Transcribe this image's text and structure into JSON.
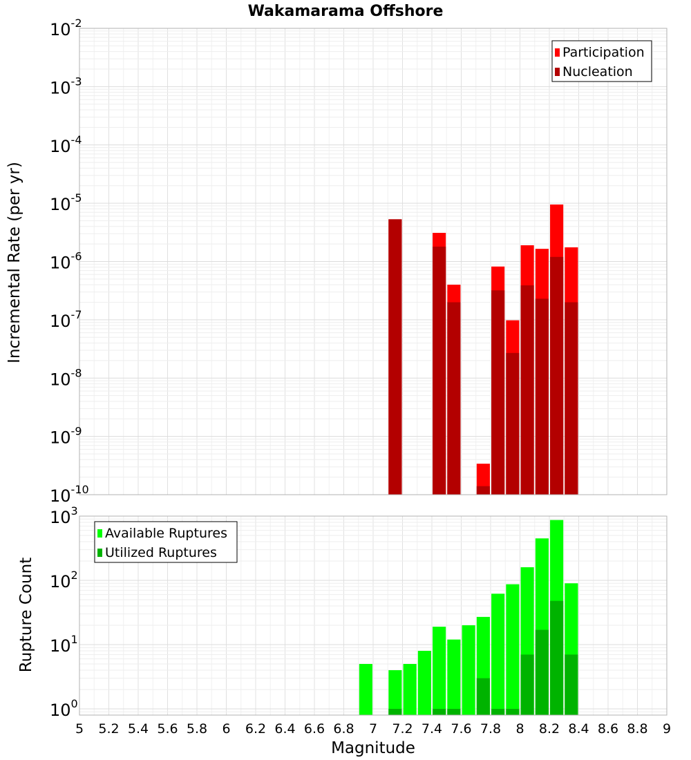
{
  "chart_data": [
    {
      "type": "bar",
      "title": "Wakamarama Offshore",
      "ylabel": "Incremental Rate (per yr)",
      "xlabel": "",
      "y_scale": "log",
      "ylim": [
        1e-10,
        0.01
      ],
      "y_tick_labels": [
        {
          "base": "10",
          "exp": "-10"
        },
        {
          "base": "10",
          "exp": "-9"
        },
        {
          "base": "10",
          "exp": "-8"
        },
        {
          "base": "10",
          "exp": "-7"
        },
        {
          "base": "10",
          "exp": "-6"
        },
        {
          "base": "10",
          "exp": "-5"
        },
        {
          "base": "10",
          "exp": "-4"
        },
        {
          "base": "10",
          "exp": "-3"
        },
        {
          "base": "10",
          "exp": "-2"
        }
      ],
      "legend_position": "top-right",
      "bar_width": 0.09,
      "series": [
        {
          "name": "Participation",
          "color": "#ff0000",
          "points": [
            [
              7.15,
              5.3e-06
            ],
            [
              7.45,
              3.1e-06
            ],
            [
              7.55,
              4e-07
            ],
            [
              7.75,
              3.4e-10
            ],
            [
              7.85,
              8.2e-07
            ],
            [
              7.95,
              9.8e-08
            ],
            [
              8.05,
              1.9e-06
            ],
            [
              8.15,
              1.65e-06
            ],
            [
              8.25,
              9.5e-06
            ],
            [
              8.35,
              1.75e-06
            ]
          ]
        },
        {
          "name": "Nucleation",
          "color": "#b30000",
          "points": [
            [
              7.15,
              5.3e-06
            ],
            [
              7.45,
              1.8e-06
            ],
            [
              7.55,
              2e-07
            ],
            [
              7.75,
              1.4e-10
            ],
            [
              7.85,
              3.2e-07
            ],
            [
              7.95,
              2.7e-08
            ],
            [
              8.05,
              3.9e-07
            ],
            [
              8.15,
              2.3e-07
            ],
            [
              8.25,
              1.2e-06
            ],
            [
              8.35,
              2e-07
            ]
          ]
        }
      ]
    },
    {
      "type": "bar",
      "ylabel": "Rupture Count",
      "xlabel": "Magnitude",
      "y_scale": "log",
      "ylim": [
        0.8,
        1000
      ],
      "xlim": [
        5,
        9
      ],
      "y_tick_labels": [
        {
          "base": "10",
          "exp": "0"
        },
        {
          "base": "10",
          "exp": "1"
        },
        {
          "base": "10",
          "exp": "2"
        },
        {
          "base": "10",
          "exp": "3"
        }
      ],
      "x_tick_labels": [
        "5",
        "5.2",
        "5.4",
        "5.6",
        "5.8",
        "6",
        "6.2",
        "6.4",
        "6.6",
        "6.8",
        "7",
        "7.2",
        "7.4",
        "7.6",
        "7.8",
        "8",
        "8.2",
        "8.4",
        "8.6",
        "8.8",
        "9"
      ],
      "legend_position": "top-left",
      "bar_width": 0.09,
      "series": [
        {
          "name": "Available Ruptures",
          "color": "#00ff00",
          "points": [
            [
              6.95,
              5
            ],
            [
              7.15,
              4
            ],
            [
              7.25,
              5
            ],
            [
              7.35,
              8
            ],
            [
              7.45,
              19
            ],
            [
              7.55,
              12
            ],
            [
              7.65,
              20
            ],
            [
              7.75,
              27
            ],
            [
              7.85,
              62
            ],
            [
              7.95,
              87
            ],
            [
              8.05,
              160
            ],
            [
              8.15,
              450
            ],
            [
              8.25,
              870
            ],
            [
              8.35,
              90
            ]
          ]
        },
        {
          "name": "Utilized Ruptures",
          "color": "#00b300",
          "points": [
            [
              7.15,
              1
            ],
            [
              7.45,
              1
            ],
            [
              7.55,
              1
            ],
            [
              7.75,
              3
            ],
            [
              7.85,
              1
            ],
            [
              7.95,
              1
            ],
            [
              8.05,
              7
            ],
            [
              8.15,
              17
            ],
            [
              8.25,
              48
            ],
            [
              8.35,
              7
            ]
          ]
        }
      ]
    }
  ]
}
